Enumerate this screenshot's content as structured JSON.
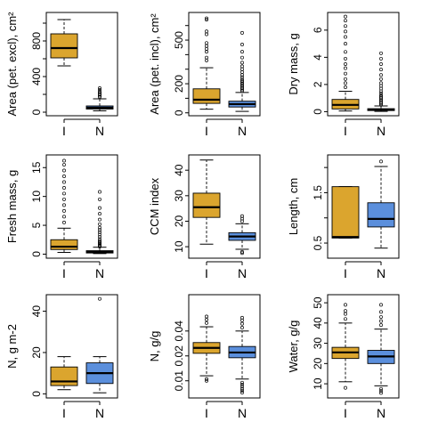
{
  "colors": {
    "I": "#dba52e",
    "N": "#5b8fdc"
  },
  "chart_data": [
    {
      "type": "boxplot",
      "ylabel": "Area (pet. excl), cm²",
      "scale": "linear",
      "ylim": [
        -40,
        1120
      ],
      "yticks": [
        0,
        200,
        400,
        600,
        800,
        1000
      ],
      "ytick_labels": [
        "0",
        "",
        "400",
        "",
        "800",
        ""
      ],
      "categories": [
        "I",
        "N"
      ],
      "boxes": [
        {
          "category": "I",
          "whisker_low": 520,
          "q1": 610,
          "median": 720,
          "q3": 880,
          "whisker_high": 1040,
          "outliers": []
        },
        {
          "category": "N",
          "whisker_low": 15,
          "q1": 35,
          "median": 50,
          "q3": 70,
          "whisker_high": 150,
          "outliers": [
            170,
            185,
            200,
            215,
            230,
            250,
            270
          ]
        }
      ]
    },
    {
      "type": "boxplot",
      "ylabel": "Area (pet. incl), cm²",
      "scale": "linear",
      "ylim": [
        -20,
        690
      ],
      "yticks": [
        0,
        100,
        200,
        300,
        400,
        500,
        600
      ],
      "ytick_labels": [
        "0",
        "",
        "200",
        "",
        "",
        "500",
        ""
      ],
      "categories": [
        "I",
        "N"
      ],
      "boxes": [
        {
          "category": "I",
          "whisker_low": 25,
          "q1": 65,
          "median": 90,
          "q3": 165,
          "whisker_high": 310,
          "outliers": [
            360,
            380,
            420,
            440,
            460,
            480,
            540,
            560,
            640,
            650
          ]
        },
        {
          "category": "N",
          "whisker_low": 10,
          "q1": 40,
          "median": 60,
          "q3": 80,
          "whisker_high": 140,
          "outliers": [
            150,
            160,
            170,
            180,
            190,
            200,
            210,
            220,
            230,
            245,
            260,
            280,
            300,
            320,
            345,
            380,
            420,
            470,
            550
          ]
        }
      ]
    },
    {
      "type": "boxplot",
      "ylabel": "Dry mass, g",
      "scale": "linear",
      "ylim": [
        -0.3,
        7.3
      ],
      "yticks": [
        0,
        2,
        4,
        6
      ],
      "ytick_labels": [
        "0",
        "2",
        "4",
        "6"
      ],
      "categories": [
        "I",
        "N"
      ],
      "boxes": [
        {
          "category": "I",
          "whisker_low": 0.05,
          "q1": 0.2,
          "median": 0.5,
          "q3": 0.9,
          "whisker_high": 1.5,
          "outliers": [
            1.8,
            2.1,
            2.4,
            2.8,
            3.2,
            3.5,
            3.9,
            4.4,
            5.0,
            5.5,
            5.9,
            6.3,
            6.7,
            7.0
          ]
        },
        {
          "category": "N",
          "whisker_low": 0.02,
          "q1": 0.08,
          "median": 0.14,
          "q3": 0.22,
          "whisker_high": 0.42,
          "outliers": [
            0.5,
            0.6,
            0.7,
            0.8,
            0.9,
            1.0,
            1.1,
            1.2,
            1.35,
            1.5,
            1.7,
            1.9,
            2.1,
            2.4,
            2.7,
            3.1,
            3.5,
            3.9,
            4.3
          ]
        }
      ]
    },
    {
      "type": "boxplot",
      "ylabel": "Fresh mass, g",
      "scale": "linear",
      "ylim": [
        -0.7,
        17.2
      ],
      "yticks": [
        0,
        5,
        10,
        15
      ],
      "ytick_labels": [
        "0",
        "5",
        "10",
        "15"
      ],
      "categories": [
        "I",
        "N"
      ],
      "boxes": [
        {
          "category": "I",
          "whisker_low": 0.3,
          "q1": 0.8,
          "median": 1.3,
          "q3": 2.5,
          "whisker_high": 4.5,
          "outliers": [
            5.5,
            6.5,
            7.5,
            8.5,
            9.5,
            10.5,
            11.5,
            12.5,
            13.5,
            14.5,
            15.5,
            16.2
          ]
        },
        {
          "category": "N",
          "whisker_low": 0.1,
          "q1": 0.2,
          "median": 0.4,
          "q3": 0.6,
          "whisker_high": 1.2,
          "outliers": [
            1.3,
            1.5,
            1.7,
            1.9,
            2.1,
            2.3,
            2.6,
            3.0,
            3.4,
            3.8,
            4.2,
            4.6,
            5.2,
            6.0,
            7.0,
            8.0,
            9.5,
            10.8
          ]
        }
      ]
    },
    {
      "type": "boxplot",
      "ylabel": "CCM index",
      "scale": "linear",
      "ylim": [
        5.5,
        46
      ],
      "yticks": [
        10,
        20,
        30,
        40
      ],
      "ytick_labels": [
        "10",
        "20",
        "30",
        "40"
      ],
      "categories": [
        "I",
        "N"
      ],
      "boxes": [
        {
          "category": "I",
          "whisker_low": 11,
          "q1": 21.5,
          "median": 25.5,
          "q3": 31,
          "whisker_high": 44,
          "outliers": []
        },
        {
          "category": "N",
          "whisker_low": 9,
          "q1": 12.5,
          "median": 14,
          "q3": 15.5,
          "whisker_high": 19,
          "outliers": [
            7.5,
            8,
            20,
            21,
            22
          ]
        }
      ]
    },
    {
      "type": "boxplot",
      "ylabel": "Length, cm",
      "scale": "linear",
      "ylim": [
        0.2,
        2.25
      ],
      "yticks": [
        0.5,
        1.0,
        1.5,
        2.0
      ],
      "ytick_labels": [
        "0.5",
        "",
        "1.5",
        ""
      ],
      "categories": [
        "I",
        "N"
      ],
      "boxes": [
        {
          "category": "I",
          "whisker_low": 0.6,
          "q1": 0.6,
          "median": 0.62,
          "q3": 1.62,
          "whisker_high": 1.62,
          "outliers": []
        },
        {
          "category": "N",
          "whisker_low": 0.4,
          "q1": 0.82,
          "median": 0.98,
          "q3": 1.3,
          "whisker_high": 2.02,
          "outliers": [
            2.12
          ]
        }
      ]
    },
    {
      "type": "boxplot",
      "ylabel": "N, g m-2",
      "scale": "linear",
      "ylim": [
        -2,
        48
      ],
      "yticks": [
        0,
        20,
        40
      ],
      "ytick_labels": [
        "0",
        "20",
        "40"
      ],
      "categories": [
        "I",
        "N"
      ],
      "boxes": [
        {
          "category": "I",
          "whisker_low": 2,
          "q1": 4,
          "median": 6,
          "q3": 13,
          "whisker_high": 18,
          "outliers": []
        },
        {
          "category": "N",
          "whisker_low": 0.5,
          "q1": 5,
          "median": 10,
          "q3": 15,
          "whisker_high": 18,
          "outliers": [
            46
          ]
        }
      ]
    },
    {
      "type": "boxplot",
      "ylabel": "N, g/g",
      "scale": "log",
      "ylim": [
        0.0062,
        0.11
      ],
      "yticks": [
        0.01,
        0.02,
        0.04
      ],
      "ytick_labels": [
        "0.01",
        "0.02",
        "0.04"
      ],
      "categories": [
        "I",
        "N"
      ],
      "boxes": [
        {
          "category": "I",
          "whisker_low": 0.0115,
          "q1": 0.0215,
          "median": 0.025,
          "q3": 0.029,
          "whisker_high": 0.045,
          "outliers": [
            0.01,
            0.0105,
            0.05,
            0.055,
            0.06
          ]
        },
        {
          "category": "N",
          "whisker_low": 0.0105,
          "q1": 0.019,
          "median": 0.022,
          "q3": 0.026,
          "whisker_high": 0.04,
          "outliers": [
            0.0072,
            0.0076,
            0.008,
            0.0085,
            0.009,
            0.0095,
            0.044,
            0.049,
            0.054,
            0.058
          ]
        }
      ]
    },
    {
      "type": "boxplot",
      "ylabel": "Water, g/g",
      "scale": "linear",
      "ylim": [
        3,
        54
      ],
      "yticks": [
        10,
        20,
        30,
        40,
        50
      ],
      "ytick_labels": [
        "10",
        "20",
        "30",
        "40",
        "50"
      ],
      "categories": [
        "I",
        "N"
      ],
      "boxes": [
        {
          "category": "I",
          "whisker_low": 11,
          "q1": 22.5,
          "median": 25.5,
          "q3": 28,
          "whisker_high": 40,
          "outliers": [
            8,
            42,
            44.5,
            46,
            49
          ]
        },
        {
          "category": "N",
          "whisker_low": 9,
          "q1": 20,
          "median": 23.5,
          "q3": 26.5,
          "whisker_high": 37,
          "outliers": [
            5.5,
            6.5,
            7.5,
            39,
            41,
            43,
            45.5,
            49
          ]
        }
      ]
    }
  ]
}
